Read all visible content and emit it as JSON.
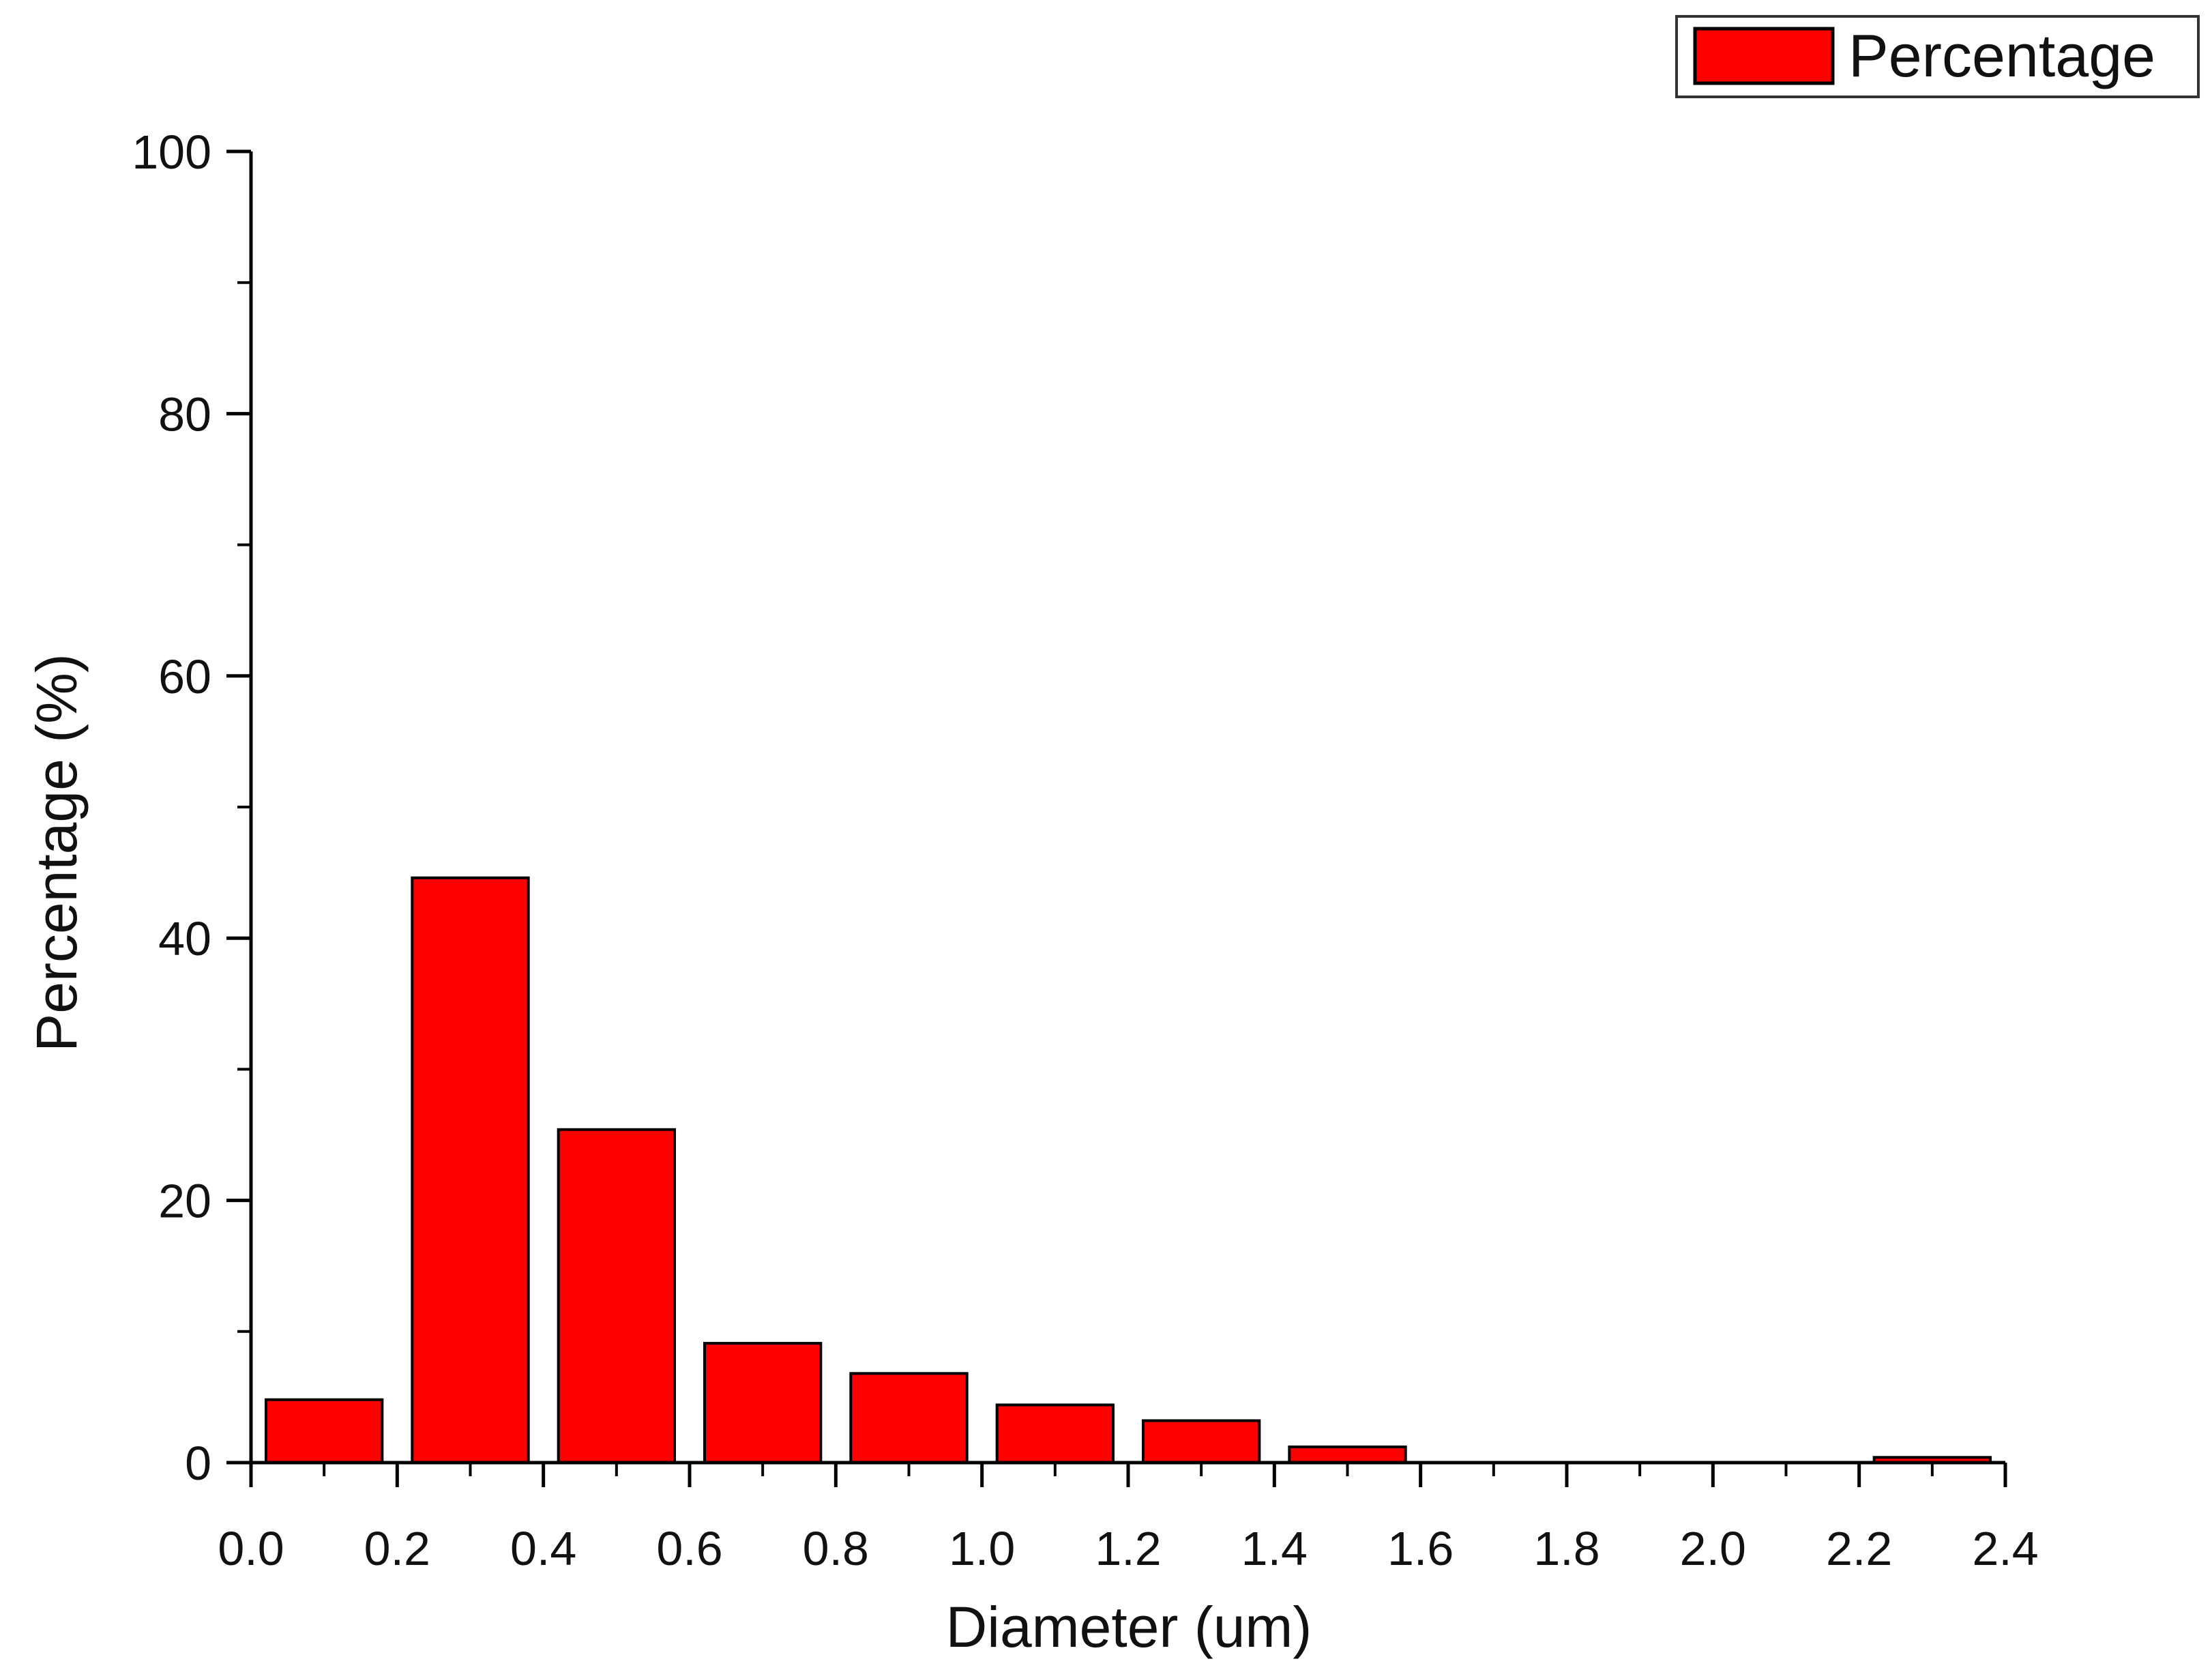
{
  "chart_data": {
    "type": "bar",
    "xlabel": "Diameter (um)",
    "ylabel": "Percentage (%)",
    "xlim": [
      0.0,
      2.4
    ],
    "ylim": [
      0,
      100
    ],
    "x_ticks": [
      "0.0",
      "0.2",
      "0.4",
      "0.6",
      "0.8",
      "1.0",
      "1.2",
      "1.4",
      "1.6",
      "1.8",
      "2.0",
      "2.2",
      "2.4"
    ],
    "y_ticks": [
      "0",
      "20",
      "40",
      "60",
      "80",
      "100"
    ],
    "bin_width": 0.2,
    "legend": {
      "position": "top-right",
      "label": "Percentage"
    },
    "grid": false,
    "color": "#ff0000",
    "series": [
      {
        "name": "Percentage",
        "bins": [
          {
            "start": 0.0,
            "end": 0.2,
            "value": 4.8
          },
          {
            "start": 0.2,
            "end": 0.4,
            "value": 44.6
          },
          {
            "start": 0.4,
            "end": 0.6,
            "value": 25.4
          },
          {
            "start": 0.6,
            "end": 0.8,
            "value": 9.1
          },
          {
            "start": 0.8,
            "end": 1.0,
            "value": 6.8
          },
          {
            "start": 1.0,
            "end": 1.2,
            "value": 4.4
          },
          {
            "start": 1.2,
            "end": 1.4,
            "value": 3.2
          },
          {
            "start": 1.4,
            "end": 1.6,
            "value": 1.2
          },
          {
            "start": 1.6,
            "end": 1.8,
            "value": 0
          },
          {
            "start": 1.8,
            "end": 2.0,
            "value": 0
          },
          {
            "start": 2.0,
            "end": 2.2,
            "value": 0
          },
          {
            "start": 2.2,
            "end": 2.4,
            "value": 0.4
          }
        ]
      }
    ]
  }
}
